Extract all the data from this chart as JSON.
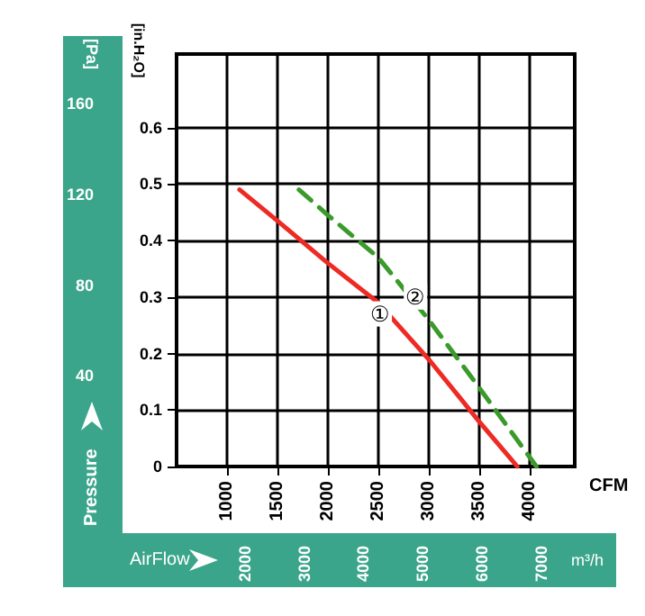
{
  "chart_data": {
    "type": "line",
    "xlabel": "CFM",
    "ylabel": "[in.H₂O]",
    "y2label": "[Pa]",
    "x2label": "m³/h",
    "xlim": [
      500,
      4450
    ],
    "xticks": [
      1000,
      1500,
      2000,
      2500,
      3000,
      3500,
      4000
    ],
    "ylim": [
      0,
      0.73
    ],
    "yticks": [
      0,
      0.1,
      0.2,
      0.3,
      0.4,
      0.5,
      0.6
    ],
    "y2lim": [
      0,
      182
    ],
    "y2ticks": [
      40,
      80,
      120,
      160
    ],
    "x2lim": [
      850,
      7560
    ],
    "x2ticks": [
      2000,
      3000,
      4000,
      5000,
      6000,
      7000
    ],
    "grid": true,
    "marker": "none",
    "series": [
      {
        "color": "#ee2a24",
        "line_style": "solid",
        "x": [
          1125,
          1500,
          2000,
          2500,
          3000,
          3500,
          3880
        ],
        "values": [
          0.49,
          0.435,
          0.36,
          0.29,
          0.19,
          0.08,
          0
        ]
      },
      {
        "color": "#3a9a2a",
        "line_style": "dashed",
        "x": [
          1714,
          2000,
          2500,
          3000,
          3500,
          4070
        ],
        "values": [
          0.49,
          0.445,
          0.37,
          0.26,
          0.14,
          0
        ]
      }
    ],
    "annotations": [
      "Pressure",
      "AirFlow",
      {
        "text": "①",
        "x": 2520,
        "y": 0.27
      },
      {
        "text": "②",
        "x": 2870,
        "y": 0.3
      }
    ]
  }
}
